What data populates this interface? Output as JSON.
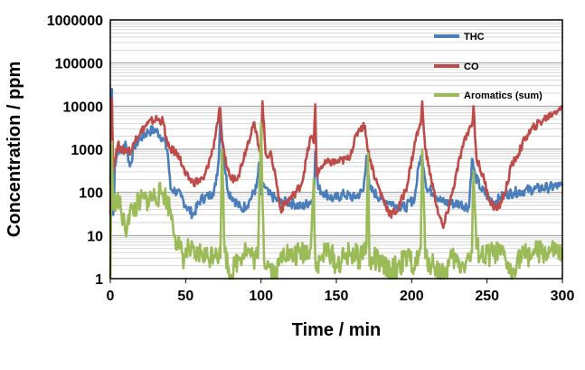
{
  "chart_data": {
    "type": "line",
    "title": "",
    "xlabel": "Time / min",
    "ylabel": "Concentration / ppm",
    "xlim": [
      0,
      300
    ],
    "ylim": [
      1,
      1000000
    ],
    "yscale": "log",
    "grid": true,
    "legend_position": "top-right",
    "xticks": [
      "0",
      "50",
      "100",
      "150",
      "200",
      "250",
      "300"
    ],
    "yticks": [
      "1",
      "10",
      "100",
      "1000",
      "10000",
      "100000",
      "1000000"
    ],
    "series": [
      {
        "name": "THC",
        "color": "#4a7ebb",
        "x": [
          0,
          1,
          2,
          3,
          5,
          8,
          10,
          13,
          16,
          20,
          25,
          30,
          35,
          38,
          40,
          43,
          47,
          50,
          55,
          60,
          65,
          68,
          70,
          72,
          73,
          75,
          78,
          82,
          87,
          92,
          97,
          99,
          100,
          102,
          105,
          110,
          113,
          117,
          122,
          127,
          132,
          135,
          136,
          138,
          142,
          148,
          155,
          162,
          168,
          170,
          172,
          175,
          180,
          185,
          190,
          196,
          202,
          205,
          207,
          210,
          215,
          220,
          226,
          232,
          238,
          240,
          242,
          246,
          252,
          255,
          258,
          262,
          268,
          275,
          282,
          290,
          298,
          300
        ],
        "y": [
          150,
          25000,
          30,
          400,
          1000,
          900,
          1500,
          400,
          1200,
          1800,
          2600,
          2800,
          1800,
          900,
          120,
          110,
          80,
          50,
          30,
          70,
          80,
          100,
          150,
          600,
          7000,
          800,
          110,
          70,
          40,
          60,
          130,
          500,
          90,
          150,
          90,
          70,
          55,
          60,
          55,
          45,
          60,
          70,
          900,
          120,
          100,
          70,
          90,
          75,
          110,
          700,
          120,
          100,
          70,
          60,
          50,
          45,
          75,
          500,
          700,
          120,
          100,
          60,
          55,
          55,
          45,
          600,
          250,
          120,
          70,
          60,
          70,
          90,
          100,
          110,
          120,
          130,
          140,
          145
        ]
      },
      {
        "name": "CO",
        "color": "#be4b48",
        "x": [
          0,
          1,
          2,
          3,
          5,
          8,
          11,
          14,
          17,
          20,
          25,
          30,
          35,
          38,
          40,
          45,
          50,
          55,
          62,
          68,
          71,
          73,
          74,
          76,
          80,
          85,
          90,
          95,
          100,
          101,
          103,
          107,
          110,
          113,
          117,
          122,
          127,
          133,
          135,
          136,
          137,
          140,
          145,
          150,
          158,
          165,
          169,
          171,
          173,
          176,
          181,
          186,
          191,
          197,
          203,
          206,
          207,
          209,
          213,
          218,
          221,
          227,
          233,
          238,
          240,
          241,
          243,
          248,
          252,
          257,
          262,
          266,
          270,
          276,
          282,
          288,
          294,
          298,
          300
        ],
        "y": [
          30,
          15000,
          300,
          600,
          1300,
          900,
          1000,
          900,
          2000,
          2500,
          4000,
          5000,
          4500,
          1200,
          1000,
          800,
          250,
          170,
          200,
          1000,
          4000,
          9000,
          1500,
          600,
          200,
          250,
          1000,
          4000,
          800,
          13000,
          800,
          700,
          200,
          40,
          60,
          90,
          160,
          2000,
          1400,
          11000,
          250,
          400,
          500,
          500,
          600,
          3000,
          3500,
          900,
          500,
          200,
          70,
          30,
          40,
          150,
          2000,
          3700,
          13000,
          1000,
          200,
          30,
          15,
          100,
          900,
          3000,
          3500,
          10000,
          600,
          200,
          60,
          40,
          100,
          400,
          700,
          2000,
          3500,
          5000,
          7000,
          9000,
          9500
        ]
      },
      {
        "name": "Aromatics (sum)",
        "color": "#9bbb59",
        "x": [
          0,
          1,
          2,
          4,
          7,
          10,
          12,
          15,
          20,
          25,
          30,
          35,
          40,
          43,
          46,
          49,
          52,
          56,
          60,
          65,
          70,
          73,
          74,
          76,
          80,
          85,
          90,
          95,
          98,
          100,
          102,
          106,
          110,
          115,
          120,
          127,
          133,
          135,
          136,
          137,
          140,
          145,
          150,
          155,
          160,
          165,
          170,
          171,
          172,
          175,
          180,
          186,
          191,
          197,
          203,
          206,
          207,
          209,
          215,
          221,
          227,
          233,
          238,
          240,
          241,
          243,
          248,
          255,
          262,
          266,
          270,
          276,
          282,
          290,
          296,
          300
        ],
        "y": [
          1,
          1500,
          40,
          80,
          40,
          12,
          30,
          40,
          60,
          70,
          80,
          100,
          40,
          10,
          5,
          3,
          5,
          3,
          4,
          3,
          5,
          3,
          1000,
          4,
          1.2,
          3,
          5,
          3,
          3,
          4000,
          3,
          2,
          1.2,
          5,
          3,
          4,
          5,
          200,
          3,
          1.5,
          3,
          5,
          2,
          3,
          4,
          3,
          6,
          800,
          2,
          3,
          2,
          1.5,
          2,
          3,
          2,
          5,
          1000,
          3,
          2,
          1.2,
          3,
          2,
          3,
          4,
          300,
          5,
          3,
          4,
          3,
          1.2,
          3,
          3.5,
          4,
          4,
          4,
          3
        ]
      }
    ]
  }
}
